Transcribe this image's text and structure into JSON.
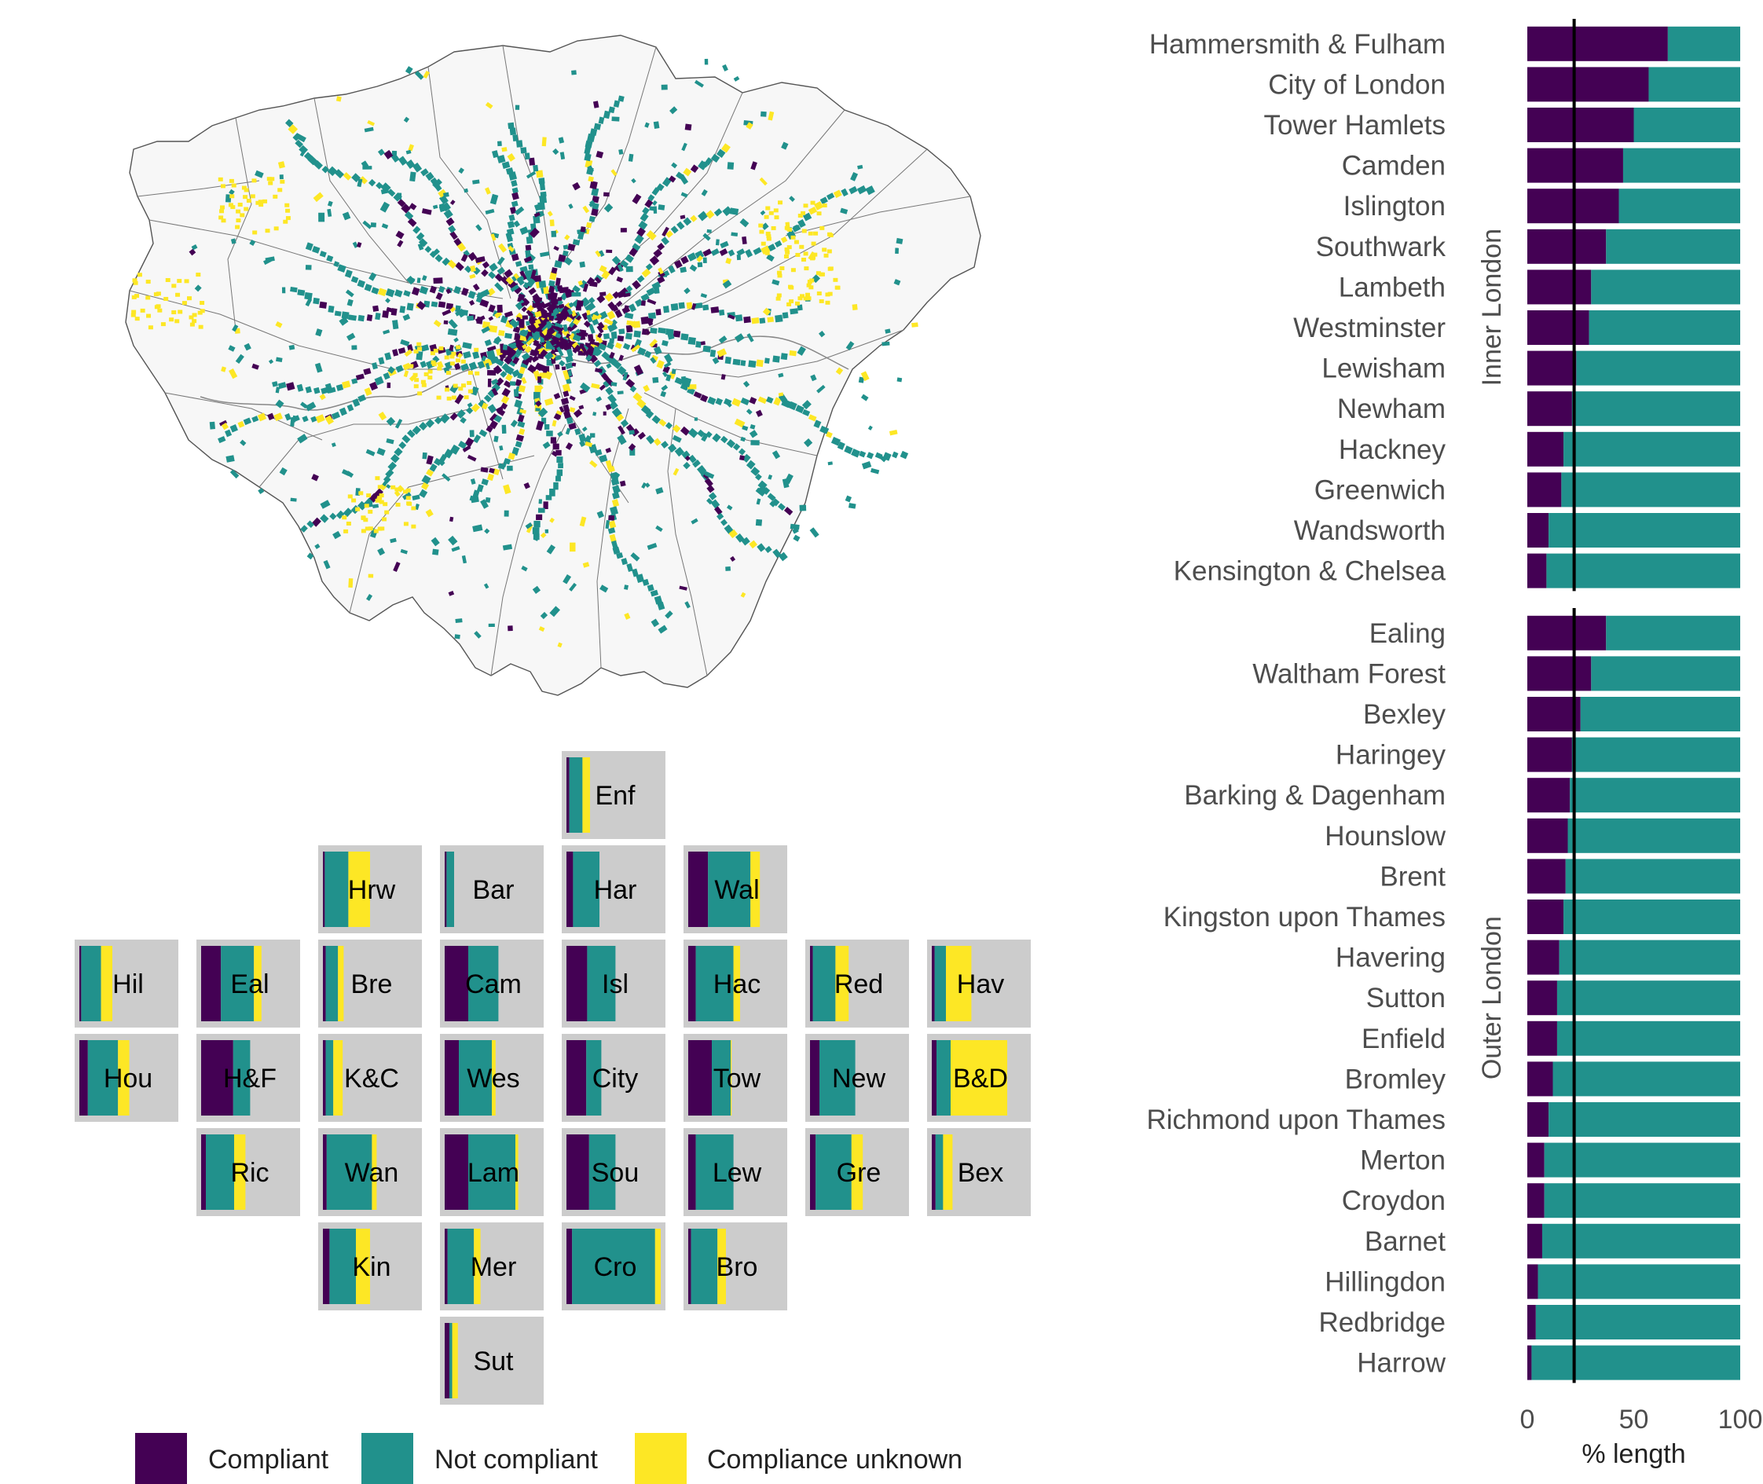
{
  "colors": {
    "compliant": "#440154",
    "not_compliant": "#21918C",
    "unknown": "#FDE725",
    "tile_bg": "#CCCCCC",
    "map_fill": "#F7F7F7",
    "map_border": "#555555",
    "text": "#4D4D4D",
    "ref_line": "#000000"
  },
  "legend": {
    "items": [
      {
        "key": "compliant",
        "label": "Compliant"
      },
      {
        "key": "not_compliant",
        "label": "Not compliant"
      },
      {
        "key": "unknown",
        "label": "Compliance unknown"
      }
    ]
  },
  "map": {
    "description_label": "London cycle network compliance map"
  },
  "chart_data": [
    {
      "type": "bar",
      "orientation": "horizontal",
      "stacked": true,
      "xlabel": "% length",
      "xlim": [
        0,
        100
      ],
      "x_ticks": [
        0,
        50,
        100
      ],
      "reference_line": 22,
      "facets": [
        {
          "label": "Inner London",
          "categories": [
            "Hammersmith & Fulham",
            "City of London",
            "Tower Hamlets",
            "Camden",
            "Islington",
            "Southwark",
            "Lambeth",
            "Westminster",
            "Lewisham",
            "Newham",
            "Hackney",
            "Greenwich",
            "Wandsworth",
            "Kensington & Chelsea"
          ],
          "series": [
            {
              "name": "Compliant",
              "values": [
                66,
                57,
                50,
                45,
                43,
                37,
                30,
                29,
                23,
                21,
                17,
                16,
                10,
                9
              ]
            },
            {
              "name": "Not compliant",
              "values": [
                34,
                43,
                50,
                55,
                57,
                63,
                70,
                71,
                77,
                79,
                83,
                84,
                90,
                91
              ]
            }
          ]
        },
        {
          "label": "Outer London",
          "categories": [
            "Ealing",
            "Waltham Forest",
            "Bexley",
            "Haringey",
            "Barking & Dagenham",
            "Hounslow",
            "Brent",
            "Kingston upon Thames",
            "Havering",
            "Sutton",
            "Enfield",
            "Bromley",
            "Richmond upon Thames",
            "Merton",
            "Croydon",
            "Barnet",
            "Hillingdon",
            "Redbridge",
            "Harrow"
          ],
          "series": [
            {
              "name": "Compliant",
              "values": [
                37,
                30,
                25,
                21,
                20,
                19,
                18,
                17,
                15,
                14,
                14,
                12,
                10,
                8,
                8,
                7,
                5,
                4,
                2
              ]
            },
            {
              "name": "Not compliant",
              "values": [
                63,
                70,
                75,
                79,
                80,
                81,
                82,
                83,
                85,
                86,
                86,
                88,
                90,
                92,
                92,
                93,
                95,
                96,
                98
              ]
            }
          ]
        }
      ]
    },
    {
      "type": "bar",
      "subtype": "tile-grid stacked bars",
      "xlim": [
        0,
        100
      ],
      "series_names": [
        "Compliant",
        "Not compliant",
        "Compliance unknown"
      ],
      "tiles": [
        {
          "label": "Enf",
          "row": 0,
          "col": 4,
          "values": [
            3,
            14,
            8
          ]
        },
        {
          "label": "Hrw",
          "row": 1,
          "col": 2,
          "values": [
            2,
            25,
            23
          ]
        },
        {
          "label": "Bar",
          "row": 1,
          "col": 3,
          "values": [
            2,
            8,
            0
          ]
        },
        {
          "label": "Har",
          "row": 1,
          "col": 4,
          "values": [
            7,
            28,
            0
          ]
        },
        {
          "label": "Wal",
          "row": 1,
          "col": 5,
          "values": [
            21,
            45,
            10
          ]
        },
        {
          "label": "Hil",
          "row": 2,
          "col": 0,
          "values": [
            2,
            21,
            12
          ]
        },
        {
          "label": "Eal",
          "row": 2,
          "col": 1,
          "values": [
            21,
            35,
            8
          ]
        },
        {
          "label": "Bre",
          "row": 2,
          "col": 2,
          "values": [
            3,
            13,
            6
          ]
        },
        {
          "label": "Cam",
          "row": 2,
          "col": 3,
          "values": [
            25,
            32,
            0
          ]
        },
        {
          "label": "Isl",
          "row": 2,
          "col": 4,
          "values": [
            22,
            30,
            0
          ]
        },
        {
          "label": "Hac",
          "row": 2,
          "col": 5,
          "values": [
            8,
            40,
            7
          ]
        },
        {
          "label": "Red",
          "row": 2,
          "col": 6,
          "values": [
            3,
            24,
            14
          ]
        },
        {
          "label": "Hav",
          "row": 2,
          "col": 7,
          "values": [
            3,
            12,
            27
          ]
        },
        {
          "label": "Hou",
          "row": 3,
          "col": 0,
          "values": [
            9,
            32,
            12
          ]
        },
        {
          "label": "H&F",
          "row": 3,
          "col": 1,
          "values": [
            34,
            18,
            0
          ]
        },
        {
          "label": "K&C",
          "row": 3,
          "col": 2,
          "values": [
            3,
            8,
            10
          ]
        },
        {
          "label": "Wes",
          "row": 3,
          "col": 3,
          "values": [
            15,
            35,
            4
          ]
        },
        {
          "label": "City",
          "row": 3,
          "col": 4,
          "values": [
            21,
            16,
            0
          ]
        },
        {
          "label": "Tow",
          "row": 3,
          "col": 5,
          "values": [
            25,
            20,
            1
          ]
        },
        {
          "label": "New",
          "row": 3,
          "col": 6,
          "values": [
            10,
            38,
            0
          ]
        },
        {
          "label": "B&D",
          "row": 3,
          "col": 7,
          "values": [
            5,
            15,
            60
          ]
        },
        {
          "label": "Ric",
          "row": 4,
          "col": 1,
          "values": [
            5,
            30,
            12
          ]
        },
        {
          "label": "Wan",
          "row": 4,
          "col": 2,
          "values": [
            4,
            48,
            5
          ]
        },
        {
          "label": "Lam",
          "row": 4,
          "col": 3,
          "values": [
            25,
            50,
            3
          ]
        },
        {
          "label": "Sou",
          "row": 4,
          "col": 4,
          "values": [
            24,
            28,
            0
          ]
        },
        {
          "label": "Lew",
          "row": 4,
          "col": 5,
          "values": [
            8,
            40,
            0
          ]
        },
        {
          "label": "Gre",
          "row": 4,
          "col": 6,
          "values": [
            6,
            38,
            12
          ]
        },
        {
          "label": "Bex",
          "row": 4,
          "col": 7,
          "values": [
            4,
            8,
            10
          ]
        },
        {
          "label": "Kin",
          "row": 5,
          "col": 2,
          "values": [
            7,
            28,
            15
          ]
        },
        {
          "label": "Mer",
          "row": 5,
          "col": 3,
          "values": [
            3,
            28,
            7
          ]
        },
        {
          "label": "Cro",
          "row": 5,
          "col": 4,
          "values": [
            6,
            88,
            6
          ]
        },
        {
          "label": "Bro",
          "row": 5,
          "col": 5,
          "values": [
            3,
            28,
            9
          ]
        },
        {
          "label": "Sut",
          "row": 6,
          "col": 3,
          "values": [
            5,
            3,
            6
          ]
        }
      ]
    }
  ]
}
